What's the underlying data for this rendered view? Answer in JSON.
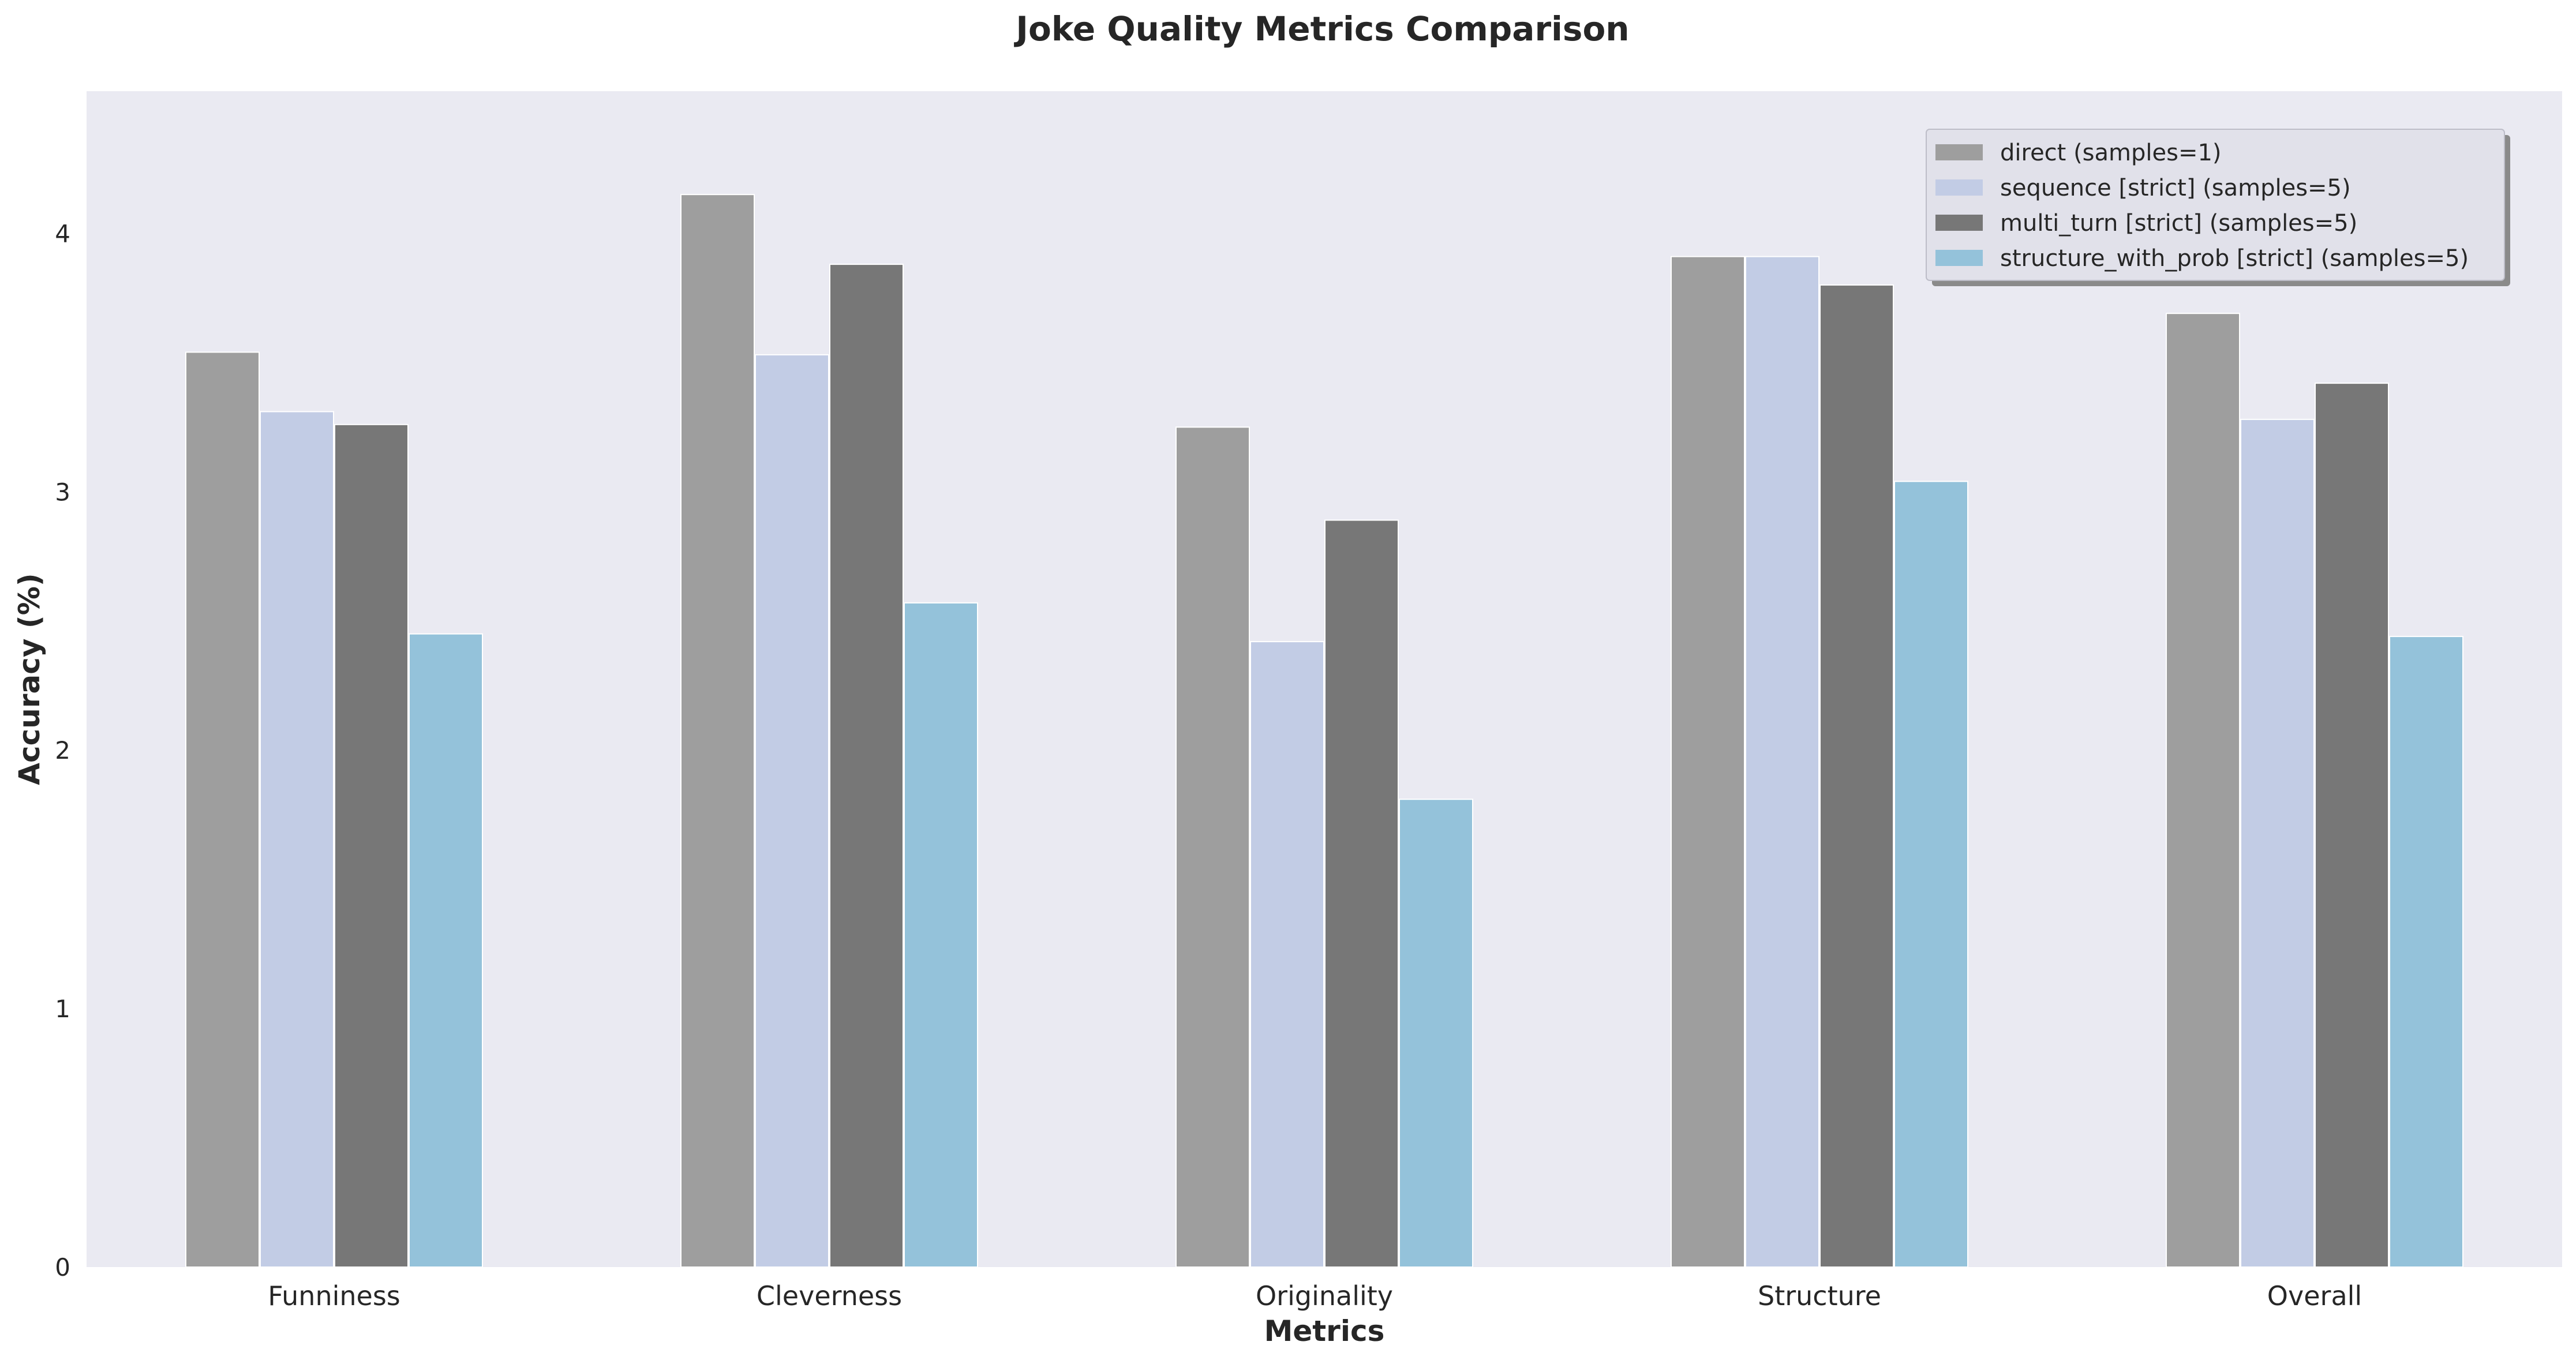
{
  "chart_data": {
    "type": "bar",
    "title": "Joke Quality Metrics Comparison",
    "xlabel": "Metrics",
    "ylabel": "Accuracy (%)",
    "ylim": [
      0,
      4.55
    ],
    "yticks": [
      0,
      1,
      2,
      3,
      4
    ],
    "grid": false,
    "legend_position": "top-right",
    "background_color": "#eaeaf2",
    "categories": [
      "Funniness",
      "Cleverness",
      "Originality",
      "Structure",
      "Overall"
    ],
    "series": [
      {
        "name": "direct (samples=1)",
        "color": "#9e9e9e",
        "values": [
          3.54,
          4.15,
          3.25,
          3.91,
          3.69
        ]
      },
      {
        "name": "sequence [strict] (samples=5)",
        "color": "#c2cce5",
        "values": [
          3.31,
          3.53,
          2.42,
          3.91,
          3.28
        ]
      },
      {
        "name": "multi_turn [strict] (samples=5)",
        "color": "#777777",
        "values": [
          3.26,
          3.88,
          2.89,
          3.8,
          3.42
        ]
      },
      {
        "name": "structure_with_prob [strict] (samples=5)",
        "color": "#94c2da",
        "values": [
          2.45,
          2.57,
          1.81,
          3.04,
          2.44
        ]
      }
    ]
  }
}
